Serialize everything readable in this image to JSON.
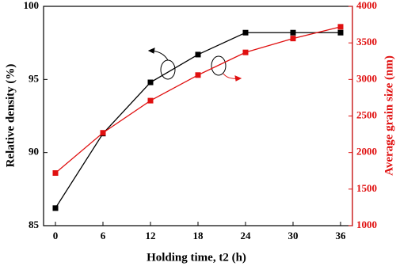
{
  "chart_data": {
    "type": "line",
    "xlabel": "Holding time, t2 (h)",
    "ylabel": "Relative density (%)",
    "y2label": "Average grain size (nm)",
    "x": [
      0,
      6,
      12,
      18,
      24,
      30,
      36
    ],
    "xlim": [
      -1.5,
      37.5
    ],
    "xticks": [
      0,
      6,
      12,
      18,
      24,
      30,
      36
    ],
    "ylim": [
      85,
      100
    ],
    "yticks": [
      85,
      90,
      95,
      100
    ],
    "y2lim": [
      1000,
      4000
    ],
    "y2ticks": [
      1000,
      1500,
      2000,
      2500,
      3000,
      3500,
      4000
    ],
    "series": [
      {
        "name": "Relative density",
        "color": "#000000",
        "values": [
          86.2,
          91.3,
          94.8,
          96.7,
          98.2,
          98.2,
          98.2
        ]
      },
      {
        "name": "Average grain size",
        "color": "#e01010",
        "axis": "y2",
        "values": [
          1720,
          2270,
          2710,
          3060,
          3370,
          3560,
          3720
        ]
      }
    ]
  }
}
